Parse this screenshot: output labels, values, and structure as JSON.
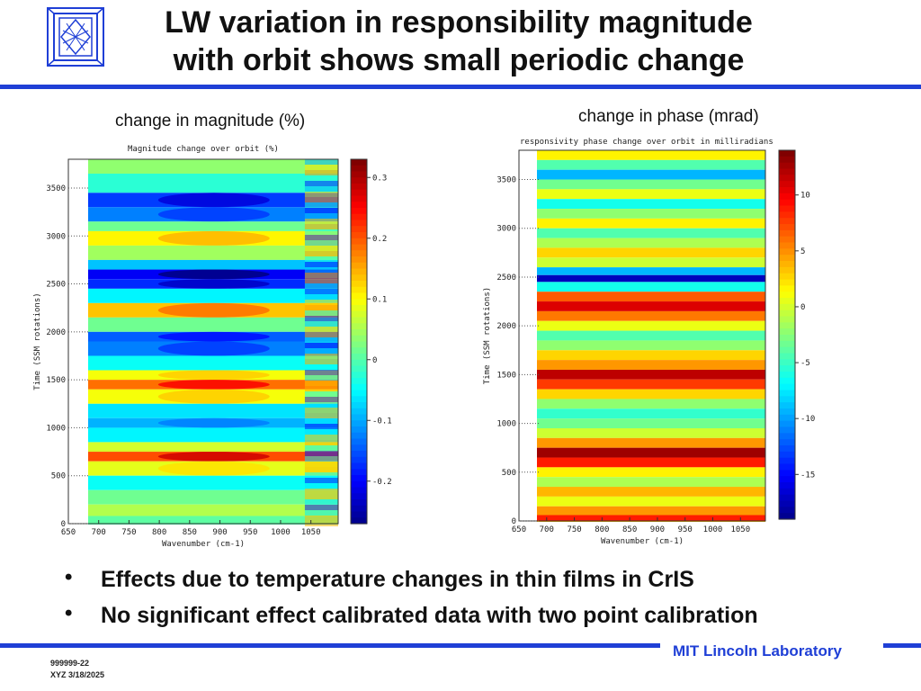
{
  "header": {
    "title_line1": "LW variation in responsibility magnitude",
    "title_line2": "with orbit shows small periodic change"
  },
  "captions": {
    "left": "change in magnitude (%)",
    "right": "change in phase (mrad)"
  },
  "bullets": [
    "Effects due to temperature changes in thin films in CrIS",
    "No significant effect calibrated data with two point calibration"
  ],
  "footer": {
    "lab_name": "MIT Lincoln Laboratory",
    "doc_id": "999999-22",
    "date_line": "XYZ 3/18/2025"
  },
  "colors": {
    "accent": "#1f3fd6"
  },
  "chart_data": [
    {
      "type": "heatmap",
      "title": "Magnitude change over orbit (%)",
      "xlabel": "Wavenumber (cm-1)",
      "ylabel": "Time (SSM rotations)",
      "xlim": [
        650,
        1095
      ],
      "ylim": [
        0,
        3800
      ],
      "xticks": [
        650,
        700,
        750,
        800,
        850,
        900,
        950,
        1000,
        1050
      ],
      "yticks": [
        0,
        500,
        1000,
        1500,
        2000,
        2500,
        3000,
        3500
      ],
      "colorbar": {
        "ticks": [
          0.3,
          0.2,
          0.1,
          0,
          -0.1,
          -0.2
        ],
        "tick_labels": [
          "0.3",
          "0.2",
          "0.1",
          "0",
          "-0.1",
          "-0.2"
        ],
        "range": [
          -0.27,
          0.33
        ]
      },
      "bands": [
        {
          "time": 3800,
          "value": 0.04
        },
        {
          "time": 3650,
          "value": -0.02
        },
        {
          "time": 3450,
          "value": -0.16
        },
        {
          "time": 3300,
          "value": -0.12
        },
        {
          "time": 3150,
          "value": 0.02
        },
        {
          "time": 3050,
          "value": 0.11
        },
        {
          "time": 2900,
          "value": 0.05
        },
        {
          "time": 2750,
          "value": -0.08
        },
        {
          "time": 2650,
          "value": -0.2
        },
        {
          "time": 2550,
          "value": -0.17
        },
        {
          "time": 2450,
          "value": -0.05
        },
        {
          "time": 2300,
          "value": 0.14
        },
        {
          "time": 2150,
          "value": 0.02
        },
        {
          "time": 2000,
          "value": -0.14
        },
        {
          "time": 1900,
          "value": -0.12
        },
        {
          "time": 1750,
          "value": -0.04
        },
        {
          "time": 1600,
          "value": 0.1
        },
        {
          "time": 1500,
          "value": 0.19
        },
        {
          "time": 1400,
          "value": 0.1
        },
        {
          "time": 1250,
          "value": -0.06
        },
        {
          "time": 1100,
          "value": -0.09
        },
        {
          "time": 1000,
          "value": -0.05
        },
        {
          "time": 850,
          "value": 0.08
        },
        {
          "time": 750,
          "value": 0.21
        },
        {
          "time": 650,
          "value": 0.09
        },
        {
          "time": 500,
          "value": -0.04
        },
        {
          "time": 350,
          "value": 0.02
        },
        {
          "time": 200,
          "value": 0.06
        },
        {
          "time": 80,
          "value": 0.01
        },
        {
          "time": 0,
          "value": 0.0
        }
      ]
    },
    {
      "type": "heatmap",
      "title": "responsivity phase change over orbit in milliradians",
      "xlabel": "Wavenumber (cm-1)",
      "ylabel": "Time (SSM rotations)",
      "xlim": [
        650,
        1095
      ],
      "ylim": [
        0,
        3800
      ],
      "xticks": [
        650,
        700,
        750,
        800,
        850,
        900,
        950,
        1000,
        1050
      ],
      "yticks": [
        0,
        500,
        1000,
        1500,
        2000,
        2500,
        3000,
        3500
      ],
      "colorbar": {
        "ticks": [
          10,
          5,
          0,
          -5,
          -10,
          -15
        ],
        "tick_labels": [
          "10",
          "5",
          "0",
          "-5",
          "-10",
          "-15"
        ],
        "range": [
          -19,
          14
        ]
      },
      "bands": [
        {
          "time": 3800,
          "value": 2
        },
        {
          "time": 3700,
          "value": -4
        },
        {
          "time": 3600,
          "value": -9
        },
        {
          "time": 3500,
          "value": -3
        },
        {
          "time": 3400,
          "value": 1
        },
        {
          "time": 3300,
          "value": -6
        },
        {
          "time": 3200,
          "value": -2
        },
        {
          "time": 3100,
          "value": 2
        },
        {
          "time": 3000,
          "value": -4
        },
        {
          "time": 2900,
          "value": -1
        },
        {
          "time": 2800,
          "value": 3
        },
        {
          "time": 2700,
          "value": 0
        },
        {
          "time": 2600,
          "value": -9
        },
        {
          "time": 2520,
          "value": -17
        },
        {
          "time": 2450,
          "value": -6
        },
        {
          "time": 2350,
          "value": 7
        },
        {
          "time": 2250,
          "value": 11
        },
        {
          "time": 2150,
          "value": 6
        },
        {
          "time": 2050,
          "value": 1
        },
        {
          "time": 1950,
          "value": -4
        },
        {
          "time": 1850,
          "value": -2
        },
        {
          "time": 1750,
          "value": 3
        },
        {
          "time": 1650,
          "value": 5
        },
        {
          "time": 1550,
          "value": 12
        },
        {
          "time": 1450,
          "value": 8
        },
        {
          "time": 1350,
          "value": 3
        },
        {
          "time": 1250,
          "value": -2
        },
        {
          "time": 1150,
          "value": -5
        },
        {
          "time": 1050,
          "value": -3
        },
        {
          "time": 950,
          "value": 0
        },
        {
          "time": 850,
          "value": 5
        },
        {
          "time": 750,
          "value": 13
        },
        {
          "time": 650,
          "value": 9
        },
        {
          "time": 550,
          "value": 2
        },
        {
          "time": 450,
          "value": -1
        },
        {
          "time": 350,
          "value": 4
        },
        {
          "time": 250,
          "value": 1
        },
        {
          "time": 150,
          "value": 5
        },
        {
          "time": 60,
          "value": 9
        },
        {
          "time": 0,
          "value": 4
        }
      ]
    }
  ]
}
